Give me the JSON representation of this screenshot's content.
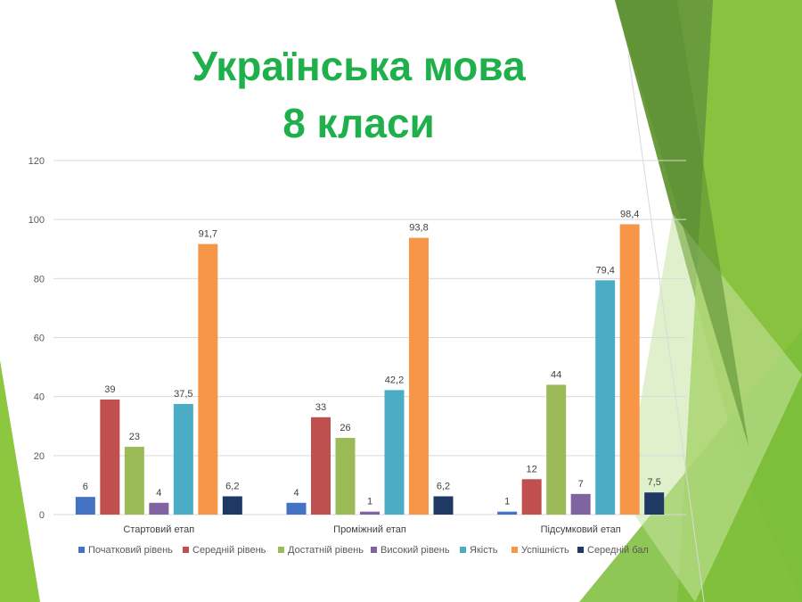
{
  "slide": {
    "title_line1": "Українська мова",
    "title_line2": "8 класи",
    "title_color": "#1fb04b"
  },
  "chart_data": {
    "type": "bar",
    "categories": [
      "Стартовий етап",
      "Проміжний етап",
      "Підсумковий етап"
    ],
    "series": [
      {
        "name": "Початковий рівень",
        "color": "#4472c4",
        "values": [
          6,
          4,
          1
        ],
        "labels": [
          "6",
          "4",
          "1"
        ]
      },
      {
        "name": "Середній рівень",
        "color": "#c0504d",
        "values": [
          39,
          33,
          12
        ],
        "labels": [
          "39",
          "33",
          "12"
        ]
      },
      {
        "name": "Достатній рівень",
        "color": "#9bbb59",
        "values": [
          23,
          26,
          44
        ],
        "labels": [
          "23",
          "26",
          "44"
        ]
      },
      {
        "name": "Високий рівень",
        "color": "#8064a2",
        "values": [
          4,
          1,
          7
        ],
        "labels": [
          "4",
          "1",
          "7"
        ]
      },
      {
        "name": "Якість",
        "color": "#4bacc6",
        "values": [
          37.5,
          42.2,
          79.4
        ],
        "labels": [
          "37,5",
          "42,2",
          "79,4"
        ]
      },
      {
        "name": "Успішність",
        "color": "#f79646",
        "values": [
          91.7,
          93.8,
          98.4
        ],
        "labels": [
          "91,7",
          "93,8",
          "98,4"
        ]
      },
      {
        "name": "Середній бал",
        "color": "#1f3864",
        "values": [
          6.2,
          6.2,
          7.5
        ],
        "labels": [
          "6,2",
          "6,2",
          "7,5"
        ]
      }
    ],
    "ylim": [
      0,
      120
    ],
    "yticks": [
      0,
      20,
      40,
      60,
      80,
      100,
      120
    ],
    "grid": true,
    "legend_position": "bottom"
  }
}
